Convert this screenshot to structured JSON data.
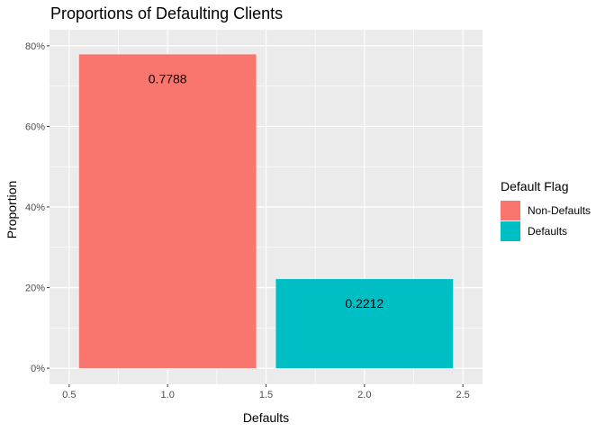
{
  "chart_data": {
    "type": "bar",
    "title": "Proportions of Defaulting Clients",
    "xlabel": "Defaults",
    "ylabel": "Proportion",
    "x_positions": [
      1.0,
      2.0
    ],
    "bar_width": 0.9,
    "values": [
      0.7788,
      0.2212
    ],
    "bar_labels": [
      "0.7788",
      "0.2212"
    ],
    "series_names": [
      "Non-Defaults",
      "Defaults"
    ],
    "colors": [
      "#F8766D",
      "#00BFC4"
    ],
    "xlim": [
      0.5,
      2.5
    ],
    "ylim": [
      0,
      0.8
    ],
    "x_ticks": [
      0.5,
      1.0,
      1.5,
      2.0,
      2.5
    ],
    "x_tick_labels": [
      "0.5",
      "1.0",
      "1.5",
      "2.0",
      "2.5"
    ],
    "y_ticks": [
      0,
      0.2,
      0.4,
      0.6,
      0.8
    ],
    "y_tick_labels": [
      "0%",
      "20%",
      "40%",
      "60%",
      "80%"
    ],
    "grid": true,
    "legend": {
      "title": "Default Flag",
      "placement": "right",
      "entries": [
        "Non-Defaults",
        "Defaults"
      ]
    }
  }
}
